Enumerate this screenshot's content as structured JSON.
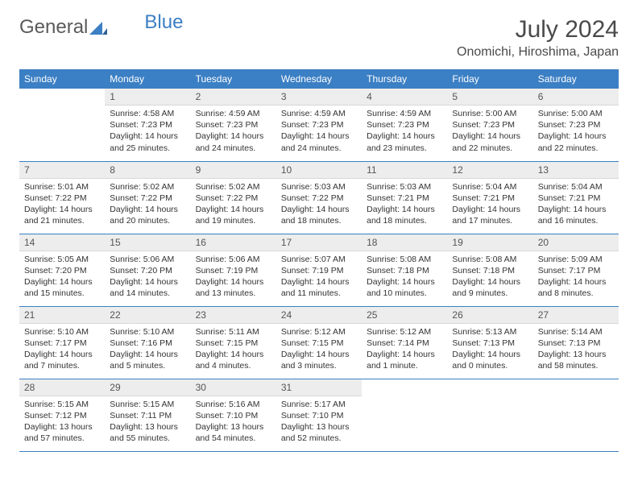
{
  "brand": {
    "part1": "General",
    "part2": "Blue"
  },
  "title": "July 2024",
  "location": "Onomichi, Hiroshima, Japan",
  "colors": {
    "header_bg": "#3b7fc4",
    "header_text": "#ffffff",
    "daynum_bg": "#ededed",
    "border": "#3b7fc4",
    "body_text": "#333333"
  },
  "weekdays": [
    "Sunday",
    "Monday",
    "Tuesday",
    "Wednesday",
    "Thursday",
    "Friday",
    "Saturday"
  ],
  "layout": {
    "first_weekday_offset": 1,
    "days_in_month": 31
  },
  "days": [
    {
      "n": 1,
      "sunrise": "4:58 AM",
      "sunset": "7:23 PM",
      "daylight": "14 hours and 25 minutes."
    },
    {
      "n": 2,
      "sunrise": "4:59 AM",
      "sunset": "7:23 PM",
      "daylight": "14 hours and 24 minutes."
    },
    {
      "n": 3,
      "sunrise": "4:59 AM",
      "sunset": "7:23 PM",
      "daylight": "14 hours and 24 minutes."
    },
    {
      "n": 4,
      "sunrise": "4:59 AM",
      "sunset": "7:23 PM",
      "daylight": "14 hours and 23 minutes."
    },
    {
      "n": 5,
      "sunrise": "5:00 AM",
      "sunset": "7:23 PM",
      "daylight": "14 hours and 22 minutes."
    },
    {
      "n": 6,
      "sunrise": "5:00 AM",
      "sunset": "7:23 PM",
      "daylight": "14 hours and 22 minutes."
    },
    {
      "n": 7,
      "sunrise": "5:01 AM",
      "sunset": "7:22 PM",
      "daylight": "14 hours and 21 minutes."
    },
    {
      "n": 8,
      "sunrise": "5:02 AM",
      "sunset": "7:22 PM",
      "daylight": "14 hours and 20 minutes."
    },
    {
      "n": 9,
      "sunrise": "5:02 AM",
      "sunset": "7:22 PM",
      "daylight": "14 hours and 19 minutes."
    },
    {
      "n": 10,
      "sunrise": "5:03 AM",
      "sunset": "7:22 PM",
      "daylight": "14 hours and 18 minutes."
    },
    {
      "n": 11,
      "sunrise": "5:03 AM",
      "sunset": "7:21 PM",
      "daylight": "14 hours and 18 minutes."
    },
    {
      "n": 12,
      "sunrise": "5:04 AM",
      "sunset": "7:21 PM",
      "daylight": "14 hours and 17 minutes."
    },
    {
      "n": 13,
      "sunrise": "5:04 AM",
      "sunset": "7:21 PM",
      "daylight": "14 hours and 16 minutes."
    },
    {
      "n": 14,
      "sunrise": "5:05 AM",
      "sunset": "7:20 PM",
      "daylight": "14 hours and 15 minutes."
    },
    {
      "n": 15,
      "sunrise": "5:06 AM",
      "sunset": "7:20 PM",
      "daylight": "14 hours and 14 minutes."
    },
    {
      "n": 16,
      "sunrise": "5:06 AM",
      "sunset": "7:19 PM",
      "daylight": "14 hours and 13 minutes."
    },
    {
      "n": 17,
      "sunrise": "5:07 AM",
      "sunset": "7:19 PM",
      "daylight": "14 hours and 11 minutes."
    },
    {
      "n": 18,
      "sunrise": "5:08 AM",
      "sunset": "7:18 PM",
      "daylight": "14 hours and 10 minutes."
    },
    {
      "n": 19,
      "sunrise": "5:08 AM",
      "sunset": "7:18 PM",
      "daylight": "14 hours and 9 minutes."
    },
    {
      "n": 20,
      "sunrise": "5:09 AM",
      "sunset": "7:17 PM",
      "daylight": "14 hours and 8 minutes."
    },
    {
      "n": 21,
      "sunrise": "5:10 AM",
      "sunset": "7:17 PM",
      "daylight": "14 hours and 7 minutes."
    },
    {
      "n": 22,
      "sunrise": "5:10 AM",
      "sunset": "7:16 PM",
      "daylight": "14 hours and 5 minutes."
    },
    {
      "n": 23,
      "sunrise": "5:11 AM",
      "sunset": "7:15 PM",
      "daylight": "14 hours and 4 minutes."
    },
    {
      "n": 24,
      "sunrise": "5:12 AM",
      "sunset": "7:15 PM",
      "daylight": "14 hours and 3 minutes."
    },
    {
      "n": 25,
      "sunrise": "5:12 AM",
      "sunset": "7:14 PM",
      "daylight": "14 hours and 1 minute."
    },
    {
      "n": 26,
      "sunrise": "5:13 AM",
      "sunset": "7:13 PM",
      "daylight": "14 hours and 0 minutes."
    },
    {
      "n": 27,
      "sunrise": "5:14 AM",
      "sunset": "7:13 PM",
      "daylight": "13 hours and 58 minutes."
    },
    {
      "n": 28,
      "sunrise": "5:15 AM",
      "sunset": "7:12 PM",
      "daylight": "13 hours and 57 minutes."
    },
    {
      "n": 29,
      "sunrise": "5:15 AM",
      "sunset": "7:11 PM",
      "daylight": "13 hours and 55 minutes."
    },
    {
      "n": 30,
      "sunrise": "5:16 AM",
      "sunset": "7:10 PM",
      "daylight": "13 hours and 54 minutes."
    },
    {
      "n": 31,
      "sunrise": "5:17 AM",
      "sunset": "7:10 PM",
      "daylight": "13 hours and 52 minutes."
    }
  ],
  "labels": {
    "sunrise": "Sunrise:",
    "sunset": "Sunset:",
    "daylight": "Daylight:"
  }
}
